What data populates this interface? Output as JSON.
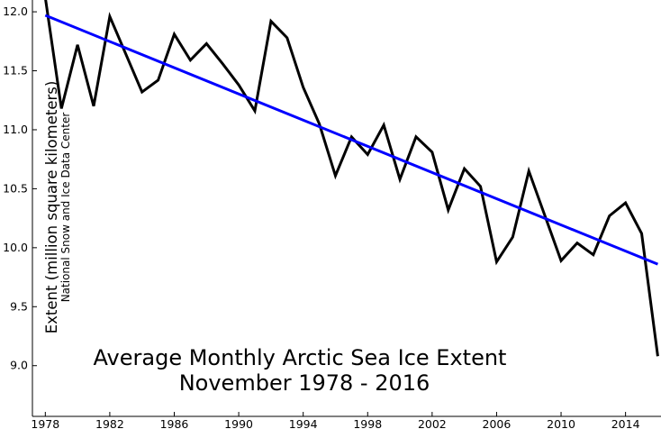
{
  "chart_data": {
    "type": "line",
    "title": "Average Monthly Arctic Sea Ice Extent",
    "subtitle": "November 1978 - 2016",
    "xlabel": "",
    "ylabel": "Extent (million square kilometers)",
    "ylabel_secondary": "National Snow and Ice Data Center",
    "xlim": [
      1977.2,
      2016.2
    ],
    "ylim": [
      8.57,
      12.1
    ],
    "xticks": [
      1978,
      1982,
      1986,
      1990,
      1994,
      1998,
      2002,
      2006,
      2010,
      2014
    ],
    "yticks": [
      9.0,
      9.5,
      10.0,
      10.5,
      11.0,
      11.5,
      12.0
    ],
    "ytick_labels": [
      "9.0",
      "9.5",
      "10.0",
      "10.5",
      "11.0",
      "11.5",
      "12.0"
    ],
    "grid": false,
    "x": [
      1978,
      1979,
      1980,
      1981,
      1982,
      1983,
      1984,
      1985,
      1986,
      1987,
      1988,
      1989,
      1990,
      1991,
      1992,
      1993,
      1994,
      1995,
      1996,
      1997,
      1998,
      1999,
      2000,
      2001,
      2002,
      2003,
      2004,
      2005,
      2006,
      2007,
      2008,
      2009,
      2010,
      2011,
      2012,
      2013,
      2014,
      2015,
      2016
    ],
    "series": [
      {
        "color": "#000000",
        "values": [
          12.12,
          11.18,
          11.72,
          11.2,
          11.96,
          11.64,
          11.32,
          11.42,
          11.81,
          11.59,
          11.73,
          11.56,
          11.38,
          11.16,
          11.92,
          11.78,
          11.36,
          11.05,
          10.61,
          10.94,
          10.79,
          11.04,
          10.58,
          10.94,
          10.81,
          10.32,
          10.67,
          10.52,
          9.88,
          10.09,
          10.65,
          10.27,
          9.89,
          10.04,
          9.94,
          10.27,
          10.38,
          10.12,
          9.08
        ]
      },
      {
        "color": "#0000ff",
        "kind": "linear-trend",
        "x": [
          1978,
          2016
        ],
        "values": [
          11.97,
          9.86
        ]
      }
    ]
  }
}
